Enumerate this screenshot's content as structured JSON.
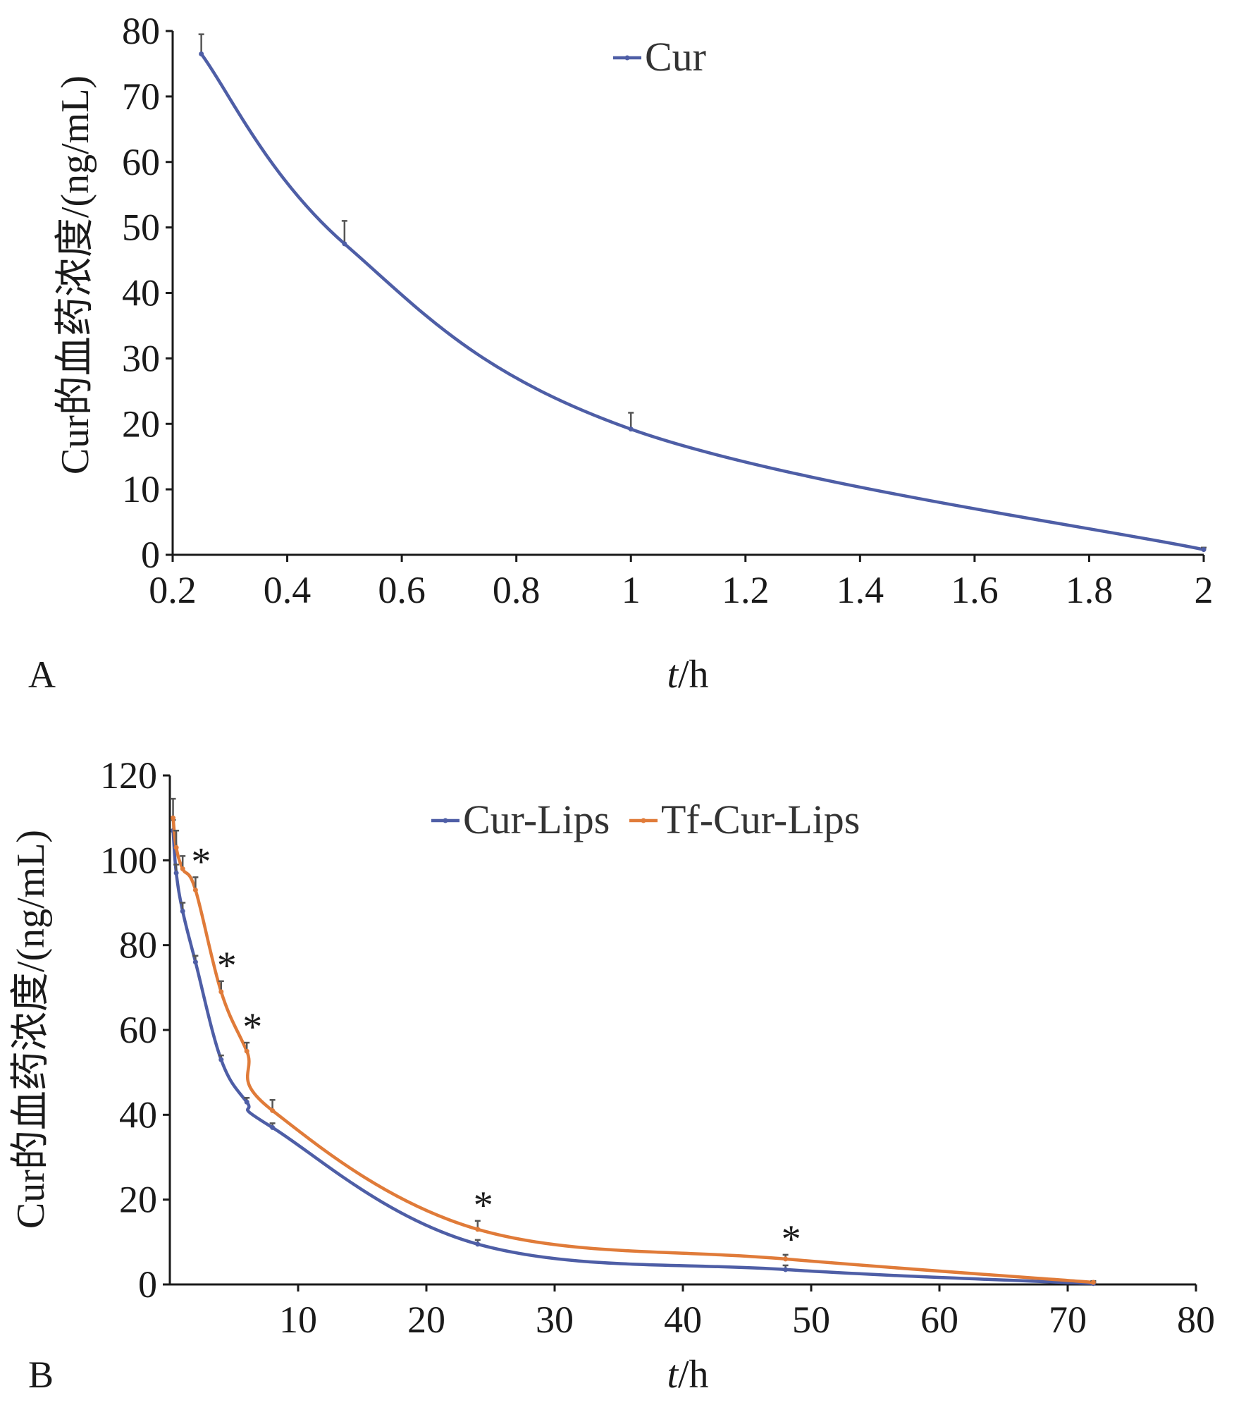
{
  "chart_data": [
    {
      "panel": "A",
      "type": "line",
      "xlabel_italic": "t",
      "xlabel_rest": "/h",
      "ylabel": "Cur的血药浓度/(ng/mL)",
      "xlim": [
        0.2,
        2.0
      ],
      "ylim": [
        0,
        80
      ],
      "xticks": [
        "0.2",
        "0.4",
        "0.6",
        "0.8",
        "1",
        "1.2",
        "1.4",
        "1.6",
        "1.8",
        "2"
      ],
      "yticks": [
        "0",
        "10",
        "20",
        "30",
        "40",
        "50",
        "60",
        "70",
        "80"
      ],
      "legend_position": "top-center",
      "series": [
        {
          "name": "Cur",
          "color": "#4e5ea6",
          "x": [
            0.25,
            0.5,
            1.0,
            2.0
          ],
          "y": [
            76.5,
            47.5,
            19.2,
            0.8
          ],
          "err": [
            3.0,
            3.5,
            2.5,
            0.3
          ]
        }
      ]
    },
    {
      "panel": "B",
      "type": "line",
      "xlabel_italic": "t",
      "xlabel_rest": "/h",
      "ylabel": "Cur的血药浓度/(ng/mL)",
      "xlim": [
        0,
        80
      ],
      "ylim": [
        0,
        120
      ],
      "xticks": [
        "10",
        "20",
        "30",
        "40",
        "50",
        "60",
        "70",
        "80"
      ],
      "yticks": [
        "0",
        "20",
        "40",
        "60",
        "80",
        "100",
        "120"
      ],
      "legend_position": "top-center",
      "significance_marker": "*",
      "significant_x": [
        2,
        4,
        6,
        24,
        48
      ],
      "series": [
        {
          "name": "Cur-Lips",
          "color": "#4e5ea6",
          "x": [
            0.25,
            0.5,
            1,
            2,
            4,
            6,
            8,
            24,
            48,
            72
          ],
          "y": [
            107,
            97,
            88,
            76,
            53,
            43,
            37,
            9.5,
            3.5,
            0.2
          ],
          "err": [
            2.5,
            2.0,
            2.0,
            1.5,
            1.0,
            1.0,
            1.0,
            1.0,
            1.0,
            0.2
          ]
        },
        {
          "name": "Tf-Cur-Lips",
          "color": "#e07b39",
          "x": [
            0.25,
            0.5,
            1,
            2,
            4,
            6,
            8,
            24,
            48,
            72
          ],
          "y": [
            110,
            103,
            98,
            93,
            69,
            55,
            41,
            13,
            6,
            0.5
          ],
          "err": [
            4.5,
            4.0,
            3.0,
            3.0,
            2.5,
            2.0,
            2.5,
            2.0,
            1.0,
            0.3
          ]
        }
      ]
    }
  ]
}
